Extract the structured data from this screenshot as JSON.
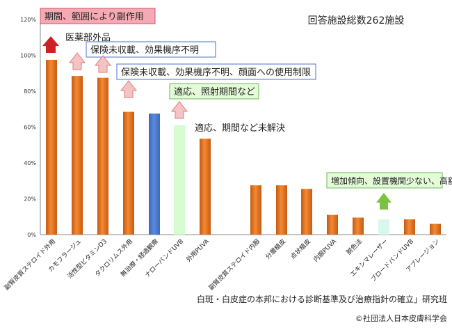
{
  "colors": {
    "orange": "#ee7d2a",
    "blue": "#4b7bd0",
    "light_green": "#d6fcd0",
    "light_teal": "#d9f7ee",
    "box_red_fill": "#f5a9b4",
    "box_red_border": "#cc5566",
    "box_blue_border": "#4b72c8",
    "box_green_fill": "#e4fbd8",
    "box_green_border": "#6cb85a",
    "arrow_red": "#cc2222",
    "arrow_pink": "#f4c3c3",
    "arrow_green": "#7cc242"
  },
  "icons": {
    "up_arrow_solid": "up-arrow-red-icon",
    "up_arrow_outline": "up-arrow-pink-icon",
    "up_arrow_green": "up-arrow-green-icon"
  },
  "chart_data": {
    "type": "bar",
    "total_label": "回答施設総数262施設",
    "ylim": [
      0,
      120
    ],
    "yticks": [
      "0%",
      "20%",
      "40%",
      "60%",
      "80%",
      "100%",
      "120%"
    ],
    "grid": false,
    "categories": [
      "副腎皮質ステロイド外用",
      "カモフラージュ",
      "活性型ビタミンD3",
      "タクロリムス外用",
      "無治療・経過観察",
      "ナローバンドUVB",
      "外用PUVA",
      "副腎皮質ステロイド内服",
      "分層植皮",
      "点状植皮",
      "内服PUVA",
      "脱色法",
      "エキシマレーザー",
      "ブロードバンドUVB",
      "アブレージョン"
    ],
    "values": [
      97.5,
      88.5,
      87.5,
      68.5,
      67.5,
      61,
      53.5,
      27.5,
      27.5,
      25.5,
      11,
      9.5,
      8.5,
      8.5,
      6
    ],
    "bar_colors": [
      "orange",
      "orange",
      "orange",
      "orange",
      "blue",
      "light_green",
      "orange",
      "orange",
      "orange",
      "orange",
      "orange",
      "orange",
      "light_teal",
      "orange",
      "orange"
    ],
    "annotations": [
      {
        "text": "期間、範囲により副作用",
        "style": "red_box"
      },
      {
        "text": "医薬部外品",
        "style": "plain"
      },
      {
        "text": "保険未収載、効果機序不明",
        "style": "blue_box"
      },
      {
        "text": "保険未収載、効果機序不明、顔面への使用制限",
        "style": "blue_box"
      },
      {
        "text": "適応、照射期間など",
        "style": "green_box"
      },
      {
        "text": "適応、期間など未解決",
        "style": "plain"
      },
      {
        "text": "増加傾向、設置機関少ない、高額",
        "style": "green_box"
      }
    ],
    "footer": "白斑・白皮症の本邦における診断基準及び治療指針の確立」研究班",
    "copyright": "©社団法人日本皮膚科学会"
  }
}
